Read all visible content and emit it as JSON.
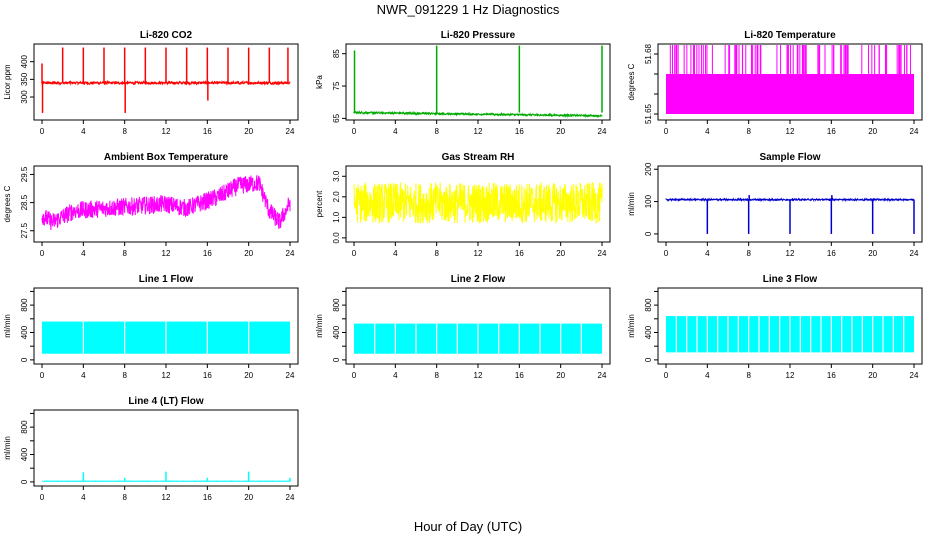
{
  "title": "NWR_091229  1 Hz Diagnostics",
  "xlabel": "Hour of Day (UTC)",
  "chart_data": [
    {
      "type": "line",
      "title": "Li-820 CO2",
      "ylabel": "Licor ppm",
      "color": "#ff0000",
      "xlim": [
        0,
        24
      ],
      "xticks": [
        0,
        4,
        8,
        12,
        16,
        20,
        24
      ],
      "ylim": [
        235,
        450
      ],
      "yticks": [
        300,
        350,
        400
      ],
      "baseline": 340,
      "noise": 4,
      "spikes": [
        {
          "x": 0.0,
          "y": 395
        },
        {
          "x": 0.05,
          "y": 255
        },
        {
          "x": 2.0,
          "y": 440
        },
        {
          "x": 4.0,
          "y": 440
        },
        {
          "x": 6.0,
          "y": 440
        },
        {
          "x": 8.0,
          "y": 440
        },
        {
          "x": 8.05,
          "y": 255
        },
        {
          "x": 10.0,
          "y": 440
        },
        {
          "x": 12.0,
          "y": 440
        },
        {
          "x": 14.0,
          "y": 440
        },
        {
          "x": 16.0,
          "y": 440
        },
        {
          "x": 16.05,
          "y": 290
        },
        {
          "x": 18.0,
          "y": 440
        },
        {
          "x": 20.0,
          "y": 440
        },
        {
          "x": 22.0,
          "y": 440
        },
        {
          "x": 23.8,
          "y": 440
        }
      ]
    },
    {
      "type": "line",
      "title": "Li-820 Pressure",
      "ylabel": "kPa",
      "color": "#00aa00",
      "xlim": [
        0,
        24
      ],
      "xticks": [
        0,
        4,
        8,
        12,
        16,
        20,
        24
      ],
      "ylim": [
        64.5,
        88
      ],
      "yticks": [
        65,
        75,
        85
      ],
      "baseline": 66.8,
      "baseline_end": 65.8,
      "noise": 0.3,
      "spikes": [
        {
          "x": 0.05,
          "y": 86
        },
        {
          "x": 8.0,
          "y": 87.5
        },
        {
          "x": 16.0,
          "y": 87.5
        },
        {
          "x": 24.0,
          "y": 87.5
        }
      ]
    },
    {
      "type": "band",
      "title": "Li-820 Temperature",
      "ylabel": "degrees C",
      "color": "#ff00ff",
      "xlim": [
        0,
        24
      ],
      "xticks": [
        0,
        4,
        8,
        12,
        16,
        20,
        24
      ],
      "ylim": [
        51.647,
        51.685
      ],
      "yticks": [
        51.65,
        51.66,
        51.67,
        51.68
      ],
      "tick_labels": [
        "51.65",
        "",
        "",
        "51.68"
      ],
      "band": [
        51.65,
        51.67
      ],
      "cap": 51.685
    },
    {
      "type": "line",
      "title": "Ambient Box Temperature",
      "ylabel": "degrees C",
      "color": "#ff00ff",
      "xlim": [
        0,
        24
      ],
      "xticks": [
        0,
        4,
        8,
        12,
        16,
        20,
        24
      ],
      "ylim": [
        27.1,
        29.8
      ],
      "yticks": [
        27.5,
        28.5,
        29.5
      ],
      "trend": [
        [
          0,
          28.05
        ],
        [
          1,
          27.8
        ],
        [
          3,
          28.2
        ],
        [
          6,
          28.3
        ],
        [
          10,
          28.4
        ],
        [
          12,
          28.45
        ],
        [
          14,
          28.3
        ],
        [
          17,
          28.7
        ],
        [
          19,
          29.1
        ],
        [
          21,
          29.2
        ],
        [
          22,
          28.2
        ],
        [
          23,
          27.8
        ],
        [
          24,
          28.5
        ]
      ],
      "noise": 0.32
    },
    {
      "type": "line",
      "title": "Gas Stream RH",
      "ylabel": "percent",
      "color": "#ffff00",
      "xlim": [
        0,
        24
      ],
      "xticks": [
        0,
        4,
        8,
        12,
        16,
        20,
        24
      ],
      "ylim": [
        -0.2,
        3.5
      ],
      "yticks": [
        0.0,
        1.0,
        2.0,
        3.0
      ],
      "tick_labels": [
        "0.0",
        "1.0",
        "2.0",
        "3.0"
      ],
      "trend": [
        [
          0,
          1.7
        ],
        [
          24,
          1.7
        ]
      ],
      "noise": 1.0
    },
    {
      "type": "line",
      "title": "Sample Flow",
      "ylabel": "ml/min",
      "color": "#0000cc",
      "xlim": [
        0,
        24
      ],
      "xticks": [
        0,
        4,
        8,
        12,
        16,
        20,
        24
      ],
      "ylim": [
        -25,
        210
      ],
      "yticks": [
        0,
        100,
        200
      ],
      "baseline": 106,
      "noise": 2,
      "spikes": [
        {
          "x": 4.0,
          "y": 0
        },
        {
          "x": 8.0,
          "y": 0
        },
        {
          "x": 8.05,
          "y": 120
        },
        {
          "x": 12.0,
          "y": 0
        },
        {
          "x": 16.0,
          "y": 0
        },
        {
          "x": 16.05,
          "y": 120
        },
        {
          "x": 20.0,
          "y": 0
        },
        {
          "x": 24.0,
          "y": 0
        }
      ]
    },
    {
      "type": "band",
      "title": "Line 1 Flow",
      "ylabel": "ml/min",
      "color": "#00ffff",
      "xlim": [
        0,
        24
      ],
      "xticks": [
        0,
        4,
        8,
        12,
        16,
        20,
        24
      ],
      "ylim": [
        -60,
        1050
      ],
      "yticks": [
        0,
        200,
        400,
        600,
        800,
        1000
      ],
      "tick_labels": [
        "0",
        "",
        "400",
        "",
        "800",
        ""
      ],
      "band": [
        90,
        560
      ],
      "gaps": [
        4.0,
        8.0,
        12.0,
        16.0,
        20.0
      ]
    },
    {
      "type": "band",
      "title": "Line 2 Flow",
      "ylabel": "ml/min",
      "color": "#00ffff",
      "xlim": [
        0,
        24
      ],
      "xticks": [
        0,
        4,
        8,
        12,
        16,
        20,
        24
      ],
      "ylim": [
        -60,
        1050
      ],
      "yticks": [
        0,
        200,
        400,
        600,
        800,
        1000
      ],
      "tick_labels": [
        "0",
        "",
        "400",
        "",
        "800",
        ""
      ],
      "band": [
        90,
        530
      ],
      "gaps": [
        2.0,
        4.0,
        6.0,
        8.0,
        10.0,
        12.0,
        14.0,
        16.0,
        18.0,
        20.0,
        22.0
      ]
    },
    {
      "type": "band",
      "title": "Line 3 Flow",
      "ylabel": "ml/min",
      "color": "#00ffff",
      "xlim": [
        0,
        24
      ],
      "xticks": [
        0,
        4,
        8,
        12,
        16,
        20,
        24
      ],
      "ylim": [
        -60,
        1050
      ],
      "yticks": [
        0,
        200,
        400,
        600,
        800,
        1000
      ],
      "tick_labels": [
        "0",
        "",
        "400",
        "",
        "800",
        ""
      ],
      "band": [
        110,
        640
      ],
      "gaps": [
        1,
        2,
        3,
        4,
        5,
        6,
        7,
        8,
        9,
        10,
        11,
        12,
        13,
        14,
        15,
        16,
        17,
        18,
        19,
        20,
        21,
        22,
        23
      ]
    },
    {
      "type": "line",
      "title": "Line 4 (LT) Flow",
      "ylabel": "ml/min",
      "color": "#00ffff",
      "xlim": [
        0,
        24
      ],
      "xticks": [
        0,
        4,
        8,
        12,
        16,
        20,
        24
      ],
      "ylim": [
        -60,
        1050
      ],
      "yticks": [
        0,
        200,
        400,
        600,
        800,
        1000
      ],
      "tick_labels": [
        "0",
        "",
        "400",
        "",
        "800",
        ""
      ],
      "baseline": 10,
      "noise": 2,
      "spikes": [
        {
          "x": 4.0,
          "y": 140
        },
        {
          "x": 8.0,
          "y": 60
        },
        {
          "x": 12.0,
          "y": 150
        },
        {
          "x": 16.0,
          "y": 60
        },
        {
          "x": 20.0,
          "y": 150
        },
        {
          "x": 24.0,
          "y": 60
        }
      ]
    }
  ]
}
